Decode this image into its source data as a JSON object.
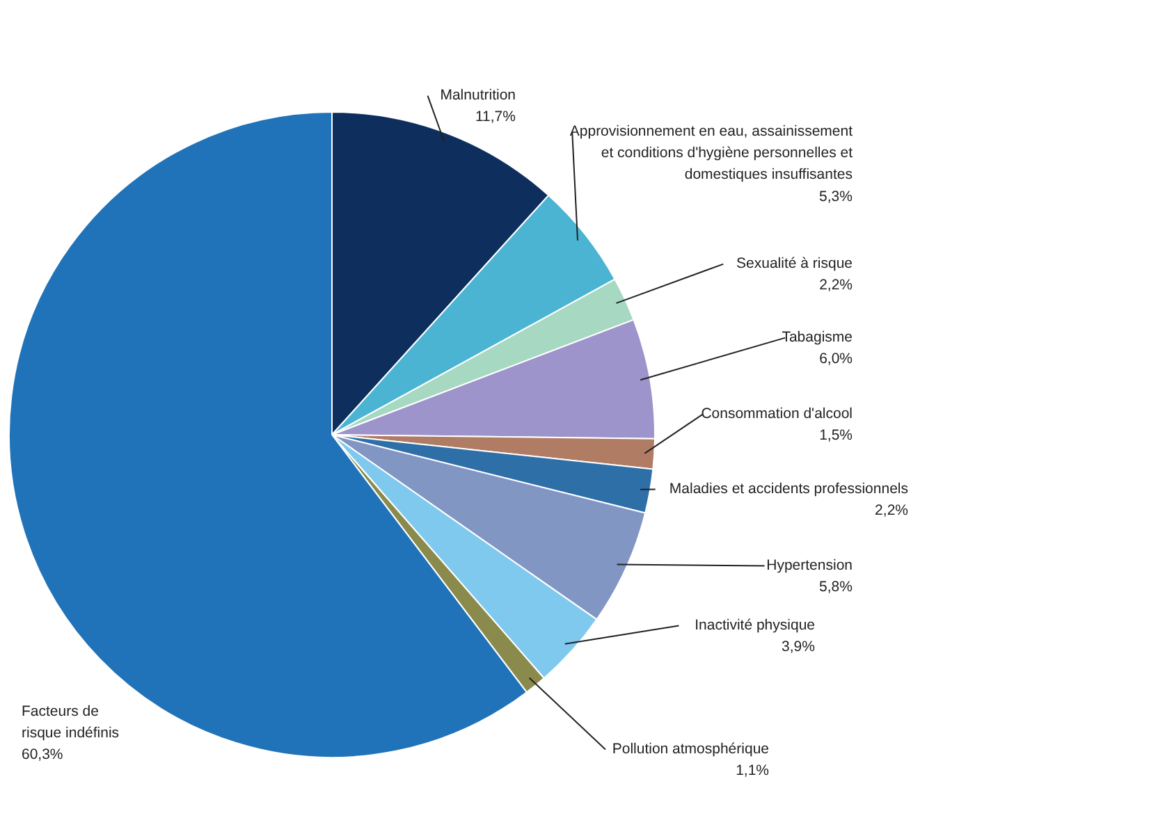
{
  "chart_data": {
    "type": "pie",
    "categories": [
      "Malnutrition",
      "Approvisionnement en eau, assainissement et conditions d'hygiène personnelles et domestiques insuffisantes",
      "Sexualité à risque",
      "Tabagisme",
      "Consommation d'alcool",
      "Maladies et accidents professionnels",
      "Hypertension",
      "Inactivité physique",
      "Pollution atmosphérique",
      "Facteurs de risque indéfinis"
    ],
    "values": [
      11.7,
      5.3,
      2.2,
      6.0,
      1.5,
      2.2,
      5.8,
      3.9,
      1.1,
      60.3
    ],
    "value_labels": [
      "11,7%",
      "5,3%",
      "2,2%",
      "6,0%",
      "1,5%",
      "2,2%",
      "5,8%",
      "3,9%",
      "1,1%",
      "60,3%"
    ],
    "colors": [
      "#0e2f5e",
      "#4bb4d2",
      "#a6d8c2",
      "#9d94cc",
      "#b07c64",
      "#2f6fa8",
      "#8296c4",
      "#80c9ee",
      "#8a8a4c",
      "#2073b8"
    ]
  }
}
